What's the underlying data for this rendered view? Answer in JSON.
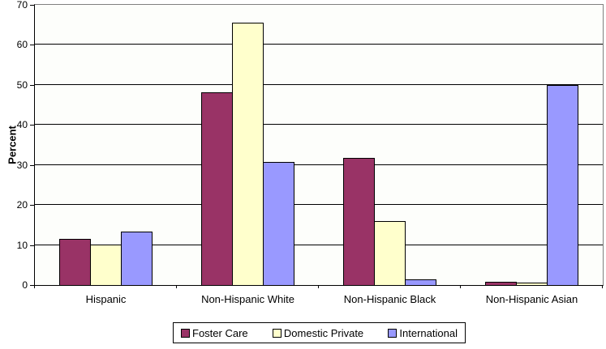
{
  "chart_data": {
    "type": "bar",
    "title": "",
    "ylabel": "Percent",
    "xlabel": "",
    "ylim": [
      0,
      70
    ],
    "yticks": [
      0,
      10,
      20,
      30,
      40,
      50,
      60,
      70
    ],
    "grid": true,
    "legend_position": "bottom",
    "categories": [
      "Hispanic",
      "Non-Hispanic White",
      "Non-Hispanic Black",
      "Non-Hispanic Asian"
    ],
    "series": [
      {
        "name": "Foster Care",
        "color": "#993366",
        "values": [
          11.5,
          48.2,
          31.7,
          0.9
        ]
      },
      {
        "name": "Domestic Private",
        "color": "#FFFFCC",
        "values": [
          10.2,
          65.5,
          15.9,
          0.7
        ]
      },
      {
        "name": "International",
        "color": "#9999FF",
        "values": [
          13.4,
          30.7,
          1.5,
          49.9
        ]
      }
    ]
  },
  "colors": {
    "plot_border": "#808080",
    "gridline": "#000000",
    "axis": "#000000",
    "bar_border": "#000000",
    "background": "#FFFFFF"
  }
}
